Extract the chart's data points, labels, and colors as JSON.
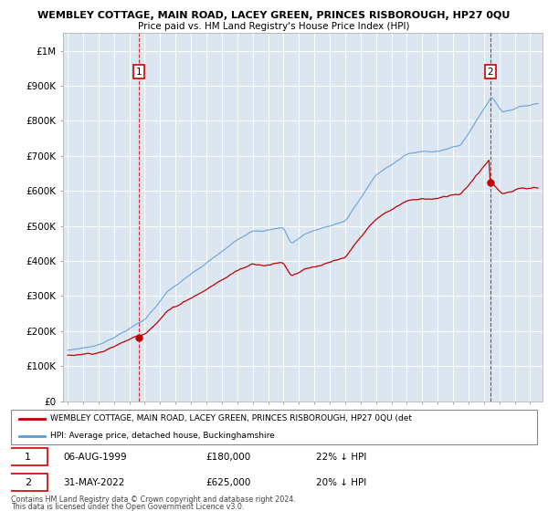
{
  "title": "WEMBLEY COTTAGE, MAIN ROAD, LACEY GREEN, PRINCES RISBOROUGH, HP27 0QU",
  "subtitle": "Price paid vs. HM Land Registry's House Price Index (HPI)",
  "ylabel_ticks": [
    "£0",
    "£100K",
    "£200K",
    "£300K",
    "£400K",
    "£500K",
    "£600K",
    "£700K",
    "£800K",
    "£900K",
    "£1M"
  ],
  "ytick_values": [
    0,
    100000,
    200000,
    300000,
    400000,
    500000,
    600000,
    700000,
    800000,
    900000,
    1000000
  ],
  "ylim": [
    0,
    1050000
  ],
  "xlim_start": 1994.7,
  "xlim_end": 2025.8,
  "hpi_color": "#5b9bd5",
  "price_color": "#c00000",
  "marker1_year": 1999.6,
  "marker1_price_val": 180000,
  "marker2_year": 2022.42,
  "marker2_price_val": 625000,
  "marker1_date": "06-AUG-1999",
  "marker1_price": "£180,000",
  "marker1_pct": "22% ↓ HPI",
  "marker2_date": "31-MAY-2022",
  "marker2_price": "£625,000",
  "marker2_pct": "20% ↓ HPI",
  "legend_line1": "WEMBLEY COTTAGE, MAIN ROAD, LACEY GREEN, PRINCES RISBOROUGH, HP27 0QU (det",
  "legend_line2": "HPI: Average price, detached house, Buckinghamshire",
  "footer1": "Contains HM Land Registry data © Crown copyright and database right 2024.",
  "footer2": "This data is licensed under the Open Government Licence v3.0.",
  "background_color": "#ffffff",
  "plot_bg_color": "#dce6f1",
  "grid_color": "#ffffff"
}
